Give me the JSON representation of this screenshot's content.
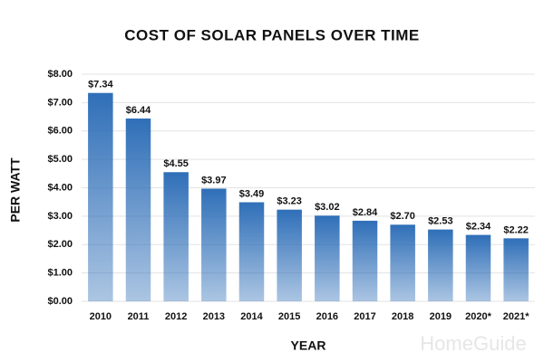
{
  "chart_data": {
    "type": "bar",
    "title": "COST OF SOLAR PANELS OVER TIME",
    "x_label": "YEAR",
    "y_label": "PER WATT",
    "categories": [
      "2010",
      "2011",
      "2012",
      "2013",
      "2014",
      "2015",
      "2016",
      "2017",
      "2018",
      "2019",
      "2020*",
      "2021*"
    ],
    "values": [
      7.34,
      6.44,
      4.55,
      3.97,
      3.49,
      3.23,
      3.02,
      2.84,
      2.7,
      2.53,
      2.34,
      2.22
    ],
    "value_labels": [
      "$7.34",
      "$6.44",
      "$4.55",
      "$3.97",
      "$3.49",
      "$3.23",
      "$3.02",
      "$2.84",
      "$2.70",
      "$2.53",
      "$2.34",
      "$2.22"
    ],
    "color": "#2f6fb8",
    "ylim": [
      0,
      8
    ],
    "yticks": [
      {
        "value": 0,
        "label": "$0.00"
      },
      {
        "value": 1,
        "label": "$1.00"
      },
      {
        "value": 2,
        "label": "$2.00"
      },
      {
        "value": 3,
        "label": "$3.00"
      },
      {
        "value": 4,
        "label": "$4.00"
      },
      {
        "value": 5,
        "label": "$5.00"
      },
      {
        "value": 6,
        "label": "$6.00"
      },
      {
        "value": 7,
        "label": "$7.00"
      },
      {
        "value": 8,
        "label": "$8.00"
      }
    ],
    "grid": true,
    "watermark": "HomeGuide"
  }
}
